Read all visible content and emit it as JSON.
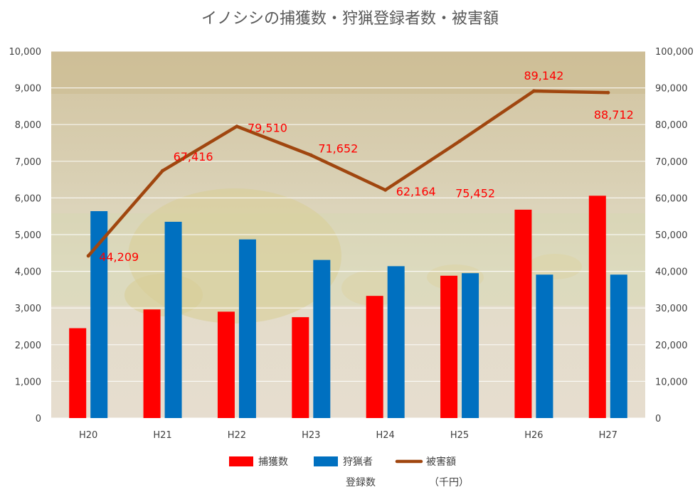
{
  "chart_data": {
    "type": "bar",
    "title": "イノシシの捕獲数・狩猟登録者数・被害額",
    "categories": [
      "H20",
      "H21",
      "H22",
      "H23",
      "H24",
      "H25",
      "H26",
      "H27"
    ],
    "series": [
      {
        "name": "捕獲数",
        "type": "bar",
        "axis": "left",
        "color": "#ff0000",
        "values": [
          2450,
          2960,
          2900,
          2750,
          3330,
          3880,
          5680,
          6060
        ]
      },
      {
        "name": "狩猟者登録数",
        "type": "bar",
        "axis": "left",
        "color": "#0070c0",
        "values": [
          5640,
          5350,
          4870,
          4310,
          4140,
          3950,
          3910,
          3910
        ]
      },
      {
        "name": "被害額（千円）",
        "type": "line",
        "axis": "right",
        "color": "#a0460f",
        "values": [
          44209,
          67416,
          79510,
          71652,
          62164,
          75452,
          89142,
          88712
        ]
      }
    ],
    "data_labels": [
      "44,209",
      "67,416",
      "79,510",
      "71,652",
      "62,164",
      "75,452",
      "89,142",
      "88,712"
    ],
    "y_left": {
      "min": 0,
      "max": 10000,
      "ticks": [
        "0",
        "1,000",
        "2,000",
        "3,000",
        "4,000",
        "5,000",
        "6,000",
        "7,000",
        "8,000",
        "9,000",
        "10,000"
      ]
    },
    "y_right": {
      "min": 0,
      "max": 100000,
      "ticks": [
        "0",
        "10,000",
        "20,000",
        "30,000",
        "40,000",
        "50,000",
        "60,000",
        "70,000",
        "80,000",
        "90,000",
        "100,000"
      ]
    },
    "grid": true,
    "legend": {
      "position": "bottom",
      "items": [
        {
          "line1": "捕獲数",
          "line2": ""
        },
        {
          "line1": "狩猟者",
          "line2": "登録数"
        },
        {
          "line1": "被害額",
          "line2": "（千円）"
        }
      ]
    },
    "background": "photo of boar statues"
  }
}
